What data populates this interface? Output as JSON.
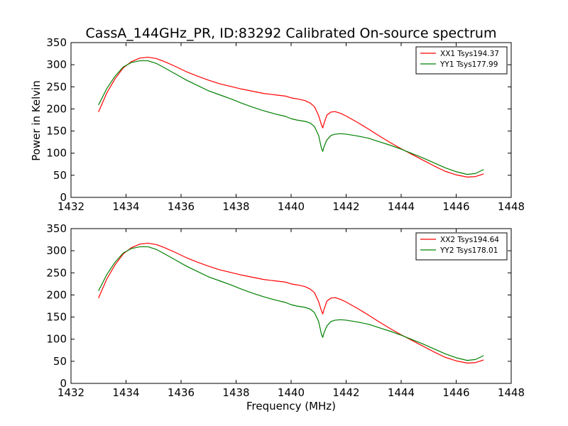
{
  "title": "CassA_144GHz_PR, ID:83292 Calibrated On-source spectrum",
  "colors": {
    "xx": "#ff0000",
    "yy": "#008000"
  },
  "chart_data": [
    {
      "type": "line",
      "ylabel": "Power in Kelvin",
      "xlabel": "",
      "xlim": [
        1432,
        1448
      ],
      "ylim": [
        0,
        350
      ],
      "xticks": [
        "1432",
        "1434",
        "1436",
        "1438",
        "1440",
        "1442",
        "1444",
        "1446",
        "1448"
      ],
      "yticks": [
        "0",
        "50",
        "100",
        "150",
        "200",
        "250",
        "300",
        "350"
      ],
      "legend_position": "top-right",
      "series": [
        {
          "name": "XX1 Tsys194.37",
          "color": "#ff0000",
          "x": [
            1433.0,
            1433.3,
            1433.6,
            1433.9,
            1434.2,
            1434.5,
            1434.8,
            1435.1,
            1435.4,
            1435.8,
            1436.2,
            1436.6,
            1437.0,
            1437.4,
            1437.8,
            1438.2,
            1438.6,
            1439.0,
            1439.4,
            1439.8,
            1440.0,
            1440.2,
            1440.5,
            1440.7,
            1440.85,
            1441.0,
            1441.1,
            1441.15,
            1441.2,
            1441.3,
            1441.45,
            1441.6,
            1441.8,
            1442.0,
            1442.4,
            1442.8,
            1443.2,
            1443.6,
            1444.0,
            1444.4,
            1444.8,
            1445.2,
            1445.6,
            1446.0,
            1446.4,
            1446.7,
            1447.0
          ],
          "y": [
            193,
            236,
            268,
            293,
            307,
            315,
            317,
            314,
            307,
            296,
            284,
            274,
            265,
            257,
            251,
            245,
            240,
            235,
            232,
            229,
            225,
            223,
            219,
            213,
            205,
            185,
            165,
            157,
            168,
            186,
            193,
            194,
            190,
            184,
            170,
            155,
            139,
            124,
            110,
            97,
            84,
            71,
            59,
            51,
            46,
            47,
            53
          ]
        },
        {
          "name": "YY1 Tsys177.99",
          "color": "#008000",
          "x": [
            1433.0,
            1433.3,
            1433.6,
            1433.9,
            1434.2,
            1434.5,
            1434.8,
            1435.1,
            1435.4,
            1435.8,
            1436.2,
            1436.6,
            1437.0,
            1437.4,
            1437.8,
            1438.2,
            1438.6,
            1439.0,
            1439.4,
            1439.8,
            1440.0,
            1440.2,
            1440.5,
            1440.7,
            1440.85,
            1441.0,
            1441.1,
            1441.15,
            1441.2,
            1441.3,
            1441.45,
            1441.6,
            1441.8,
            1442.0,
            1442.4,
            1442.8,
            1443.2,
            1443.6,
            1444.0,
            1444.4,
            1444.8,
            1445.2,
            1445.6,
            1446.0,
            1446.4,
            1446.7,
            1447.0
          ],
          "y": [
            209,
            246,
            274,
            295,
            305,
            309,
            309,
            303,
            293,
            279,
            265,
            253,
            241,
            232,
            223,
            213,
            204,
            196,
            189,
            183,
            178,
            175,
            172,
            168,
            160,
            140,
            112,
            104,
            115,
            130,
            140,
            143,
            144,
            143,
            139,
            134,
            126,
            118,
            109,
            99,
            89,
            78,
            67,
            58,
            52,
            54,
            63
          ]
        }
      ]
    },
    {
      "type": "line",
      "ylabel": "",
      "xlabel": "Frequency (MHz)",
      "xlim": [
        1432,
        1448
      ],
      "ylim": [
        0,
        350
      ],
      "xticks": [
        "1432",
        "1434",
        "1436",
        "1438",
        "1440",
        "1442",
        "1444",
        "1446",
        "1448"
      ],
      "yticks": [
        "0",
        "50",
        "100",
        "150",
        "200",
        "250",
        "300",
        "350"
      ],
      "legend_position": "top-right",
      "series": [
        {
          "name": "XX2 Tsys194.64",
          "color": "#ff0000",
          "x": [
            1433.0,
            1433.3,
            1433.6,
            1433.9,
            1434.2,
            1434.5,
            1434.8,
            1435.1,
            1435.4,
            1435.8,
            1436.2,
            1436.6,
            1437.0,
            1437.4,
            1437.8,
            1438.2,
            1438.6,
            1439.0,
            1439.4,
            1439.8,
            1440.0,
            1440.2,
            1440.5,
            1440.7,
            1440.85,
            1441.0,
            1441.1,
            1441.15,
            1441.2,
            1441.3,
            1441.45,
            1441.6,
            1441.8,
            1442.0,
            1442.4,
            1442.8,
            1443.2,
            1443.6,
            1444.0,
            1444.4,
            1444.8,
            1445.2,
            1445.6,
            1446.0,
            1446.4,
            1446.7,
            1447.0
          ],
          "y": [
            193,
            236,
            268,
            293,
            307,
            315,
            317,
            314,
            307,
            296,
            284,
            274,
            265,
            257,
            251,
            245,
            240,
            235,
            232,
            229,
            225,
            223,
            219,
            213,
            205,
            185,
            165,
            157,
            168,
            186,
            193,
            194,
            190,
            184,
            170,
            155,
            139,
            124,
            110,
            97,
            84,
            71,
            59,
            51,
            46,
            47,
            53
          ]
        },
        {
          "name": "YY2 Tsys178.01",
          "color": "#008000",
          "x": [
            1433.0,
            1433.3,
            1433.6,
            1433.9,
            1434.2,
            1434.5,
            1434.8,
            1435.1,
            1435.4,
            1435.8,
            1436.2,
            1436.6,
            1437.0,
            1437.4,
            1437.8,
            1438.2,
            1438.6,
            1439.0,
            1439.4,
            1439.8,
            1440.0,
            1440.2,
            1440.5,
            1440.7,
            1440.85,
            1441.0,
            1441.1,
            1441.15,
            1441.2,
            1441.3,
            1441.45,
            1441.6,
            1441.8,
            1442.0,
            1442.4,
            1442.8,
            1443.2,
            1443.6,
            1444.0,
            1444.4,
            1444.8,
            1445.2,
            1445.6,
            1446.0,
            1446.4,
            1446.7,
            1447.0
          ],
          "y": [
            209,
            246,
            274,
            295,
            305,
            309,
            309,
            303,
            293,
            279,
            265,
            253,
            241,
            232,
            223,
            213,
            204,
            196,
            189,
            183,
            178,
            175,
            172,
            168,
            160,
            140,
            112,
            104,
            115,
            130,
            140,
            143,
            144,
            143,
            139,
            134,
            126,
            118,
            109,
            99,
            89,
            78,
            67,
            58,
            52,
            54,
            63
          ]
        }
      ]
    }
  ]
}
